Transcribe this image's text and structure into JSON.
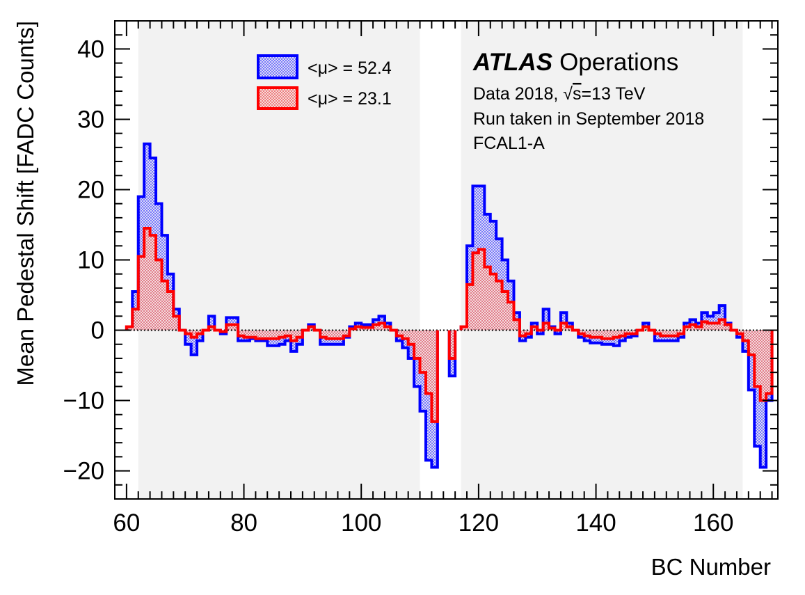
{
  "chart_data": {
    "type": "step",
    "xlabel": "BC Number",
    "ylabel": "Mean Pedestal Shift [FADC Counts]",
    "xlim": [
      58,
      171
    ],
    "ylim": [
      -24,
      44
    ],
    "x_ticks": [
      "60",
      "80",
      "100",
      "120",
      "140",
      "160"
    ],
    "y_ticks": [
      "−20",
      "−10",
      "0",
      "10",
      "20",
      "30",
      "40"
    ],
    "bunch_train_bands": [
      [
        62,
        110
      ],
      [
        117,
        165
      ]
    ],
    "zero_line": true,
    "annotation": {
      "brand": "ATLAS",
      "label": "Operations",
      "line1_prefix": "Data 2018, ",
      "line1_sqrt": "√",
      "line1_s": "s",
      "line1_suffix": "=13 TeV",
      "line2": "Run taken in September 2018",
      "line3": "FCAL1-A"
    },
    "series": [
      {
        "name": "<μ> = 52.4",
        "color": "#0000ff",
        "fill": "#c4c4ee",
        "segments": [
          {
            "start": 60,
            "values": [
              0.5,
              5.5,
              19,
              26.5,
              24.5,
              18,
              13.5,
              8,
              3,
              0,
              -2,
              -3.5,
              -1.5,
              0,
              2,
              0,
              -0.5,
              1.8,
              1.8,
              -1.5,
              -1.5,
              -1.2,
              -1.5,
              -1.5,
              -2.2,
              -2.2,
              -2.0,
              -1.5,
              -3.0,
              -2.0,
              0,
              0.8,
              0,
              -2.0,
              -2.0,
              -2.0,
              -2.0,
              -1.0,
              0.5,
              1.0,
              0.8,
              0.8,
              1.5,
              2.0,
              1.0,
              0.0,
              -1.5,
              -2.5,
              -4.0,
              -8.0,
              -11.5,
              -18.5,
              -19.5
            ]
          },
          {
            "start": 115,
            "values": [
              -6.5
            ]
          },
          {
            "start": 117,
            "values": [
              0.5,
              12,
              20.5,
              20.5,
              16.5,
              15.5,
              13,
              10,
              7,
              2.5,
              -1.5,
              -1.0,
              1.0,
              -0.5,
              3.0,
              0.5,
              -0.5,
              2.5,
              1.0,
              0,
              -1.0,
              -1.5,
              -1.8,
              -1.8,
              -2.0,
              -2.0,
              -2.2,
              -1.5,
              -1.0,
              -0.8,
              0,
              1.0,
              0,
              -1.5,
              -1.5,
              -1.5,
              -1.5,
              -1.0,
              1.0,
              1.5,
              1.0,
              2.5,
              2.0,
              2.5,
              3.5,
              1.0,
              0,
              -1.0,
              -3.0,
              -8.5,
              -16.5,
              -19.5,
              -10.0
            ]
          }
        ]
      },
      {
        "name": "<μ> = 23.1",
        "color": "#ff0000",
        "fill": "#eec4c4",
        "segments": [
          {
            "start": 60,
            "values": [
              0.5,
              3.0,
              10.5,
              14.5,
              13.5,
              10.0,
              7.0,
              5.5,
              2.0,
              0,
              -0.5,
              -1.0,
              -0.5,
              0,
              0.5,
              0,
              -0.2,
              0.8,
              0.8,
              -0.8,
              -1.0,
              -1.0,
              -1.2,
              -1.2,
              -1.2,
              -1.2,
              -1.0,
              -0.8,
              -1.5,
              -1.0,
              0,
              0.5,
              0,
              -1.0,
              -1.2,
              -1.2,
              -1.2,
              -0.8,
              0.2,
              0.5,
              0.4,
              0.4,
              0.8,
              1.0,
              0.5,
              0.0,
              -0.8,
              -1.2,
              -2.0,
              -4.0,
              -6.0,
              -9.0,
              -13.0
            ]
          },
          {
            "start": 115,
            "values": [
              -4.0
            ]
          },
          {
            "start": 117,
            "values": [
              0.5,
              6.5,
              11.0,
              11.5,
              9.0,
              8.0,
              7.0,
              5.5,
              4.0,
              1.5,
              -0.8,
              -0.5,
              0.5,
              0,
              1.0,
              0.3,
              0,
              1.0,
              0.5,
              0,
              -0.5,
              -0.8,
              -1.0,
              -1.0,
              -1.2,
              -1.2,
              -1.0,
              -0.8,
              -0.5,
              -0.5,
              0,
              0.5,
              0,
              -0.5,
              -0.8,
              -0.8,
              -0.8,
              -0.5,
              0.5,
              0.8,
              0.5,
              1.2,
              1.0,
              1.0,
              1.5,
              0.8,
              0,
              -0.5,
              -1.5,
              -3.5,
              -8.0,
              -10.0,
              -9.0
            ]
          }
        ]
      }
    ]
  }
}
